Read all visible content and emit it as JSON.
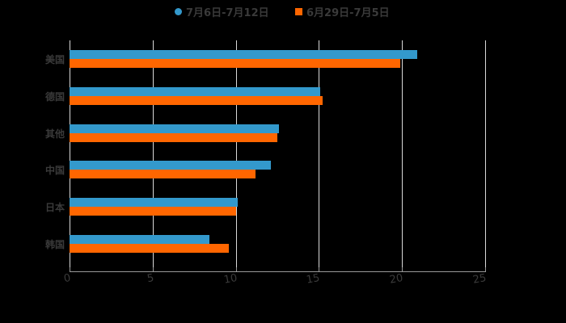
{
  "legend": [
    {
      "label": "7月6日-7月12日",
      "color": "#3399cc",
      "marker": "circle"
    },
    {
      "label": "6月29日-7月5日",
      "color": "#ff6600",
      "marker": "square"
    }
  ],
  "chart_data": {
    "type": "bar",
    "orientation": "horizontal",
    "title": "",
    "xlabel": "",
    "ylabel": "",
    "categories": [
      "美国",
      "德国",
      "其他",
      "中国",
      "日本",
      "韩国"
    ],
    "series": [
      {
        "name": "7月6日-7月12日",
        "color": "#3399cc",
        "values": [
          20.9,
          15.1,
          12.6,
          12.1,
          10.1,
          8.4
        ]
      },
      {
        "name": "6月29日-7月5日",
        "color": "#ff6600",
        "values": [
          19.9,
          15.2,
          12.5,
          11.2,
          10.0,
          9.6
        ]
      }
    ],
    "xlim": [
      0,
      25
    ],
    "xticks": [
      "0",
      "5",
      "10",
      "15",
      "20",
      "25"
    ],
    "grid": true,
    "legend_position": "top"
  }
}
